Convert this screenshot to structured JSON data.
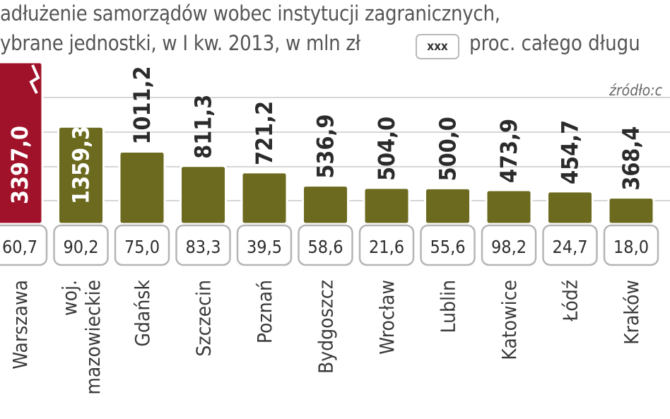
{
  "title_line1": "adłużenie samorządów wobec instytucji zagranicznych,",
  "title_line2": "ybrane jednostki, w I kw. 2013, w mln zł",
  "legend_box": "xxx",
  "legend_text": "proc. całego długu",
  "source": "źródło:c",
  "colors": {
    "highlight": "#a0122a",
    "bar": "#6b6a1e",
    "grid": "#c8c8c8"
  },
  "chart_data": {
    "type": "bar",
    "title": "",
    "xlabel": "",
    "ylabel": "",
    "categories": [
      "Warszawa",
      "woj. mazowieckie",
      "Gdańsk",
      "Szczecin",
      "Poznań",
      "Bydgoszcz",
      "Wrocław",
      "Lublin",
      "Katowice",
      "Łódź",
      "Kraków"
    ],
    "values": [
      3397.0,
      1359.3,
      1011.2,
      811.3,
      721.2,
      536.9,
      504.0,
      500.0,
      473.9,
      454.7,
      368.4
    ],
    "value_labels": [
      "3397,0",
      "1359,3",
      "1011,2",
      "811,3",
      "721,2",
      "536,9",
      "504,0",
      "500,0",
      "473,9",
      "454,7",
      "368,4"
    ],
    "percent_labels": [
      "60,7",
      "90,2",
      "75,0",
      "83,3",
      "39,5",
      "58,6",
      "21,6",
      "55,6",
      "98,2",
      "24,7",
      "18,0"
    ],
    "category_label_lines": [
      [
        "Warszawa"
      ],
      [
        "woj.",
        "mazowieckie"
      ],
      [
        "Gdańsk"
      ],
      [
        "Szczecin"
      ],
      [
        "Poznań"
      ],
      [
        "Bydgoszcz"
      ],
      [
        "Wrocław"
      ],
      [
        "Lublin"
      ],
      [
        "Katowice"
      ],
      [
        "Łódź"
      ],
      [
        "Kraków"
      ]
    ],
    "highlight_index": 0,
    "axis_break": true,
    "ylim": [
      0,
      1500
    ],
    "grid": true
  }
}
